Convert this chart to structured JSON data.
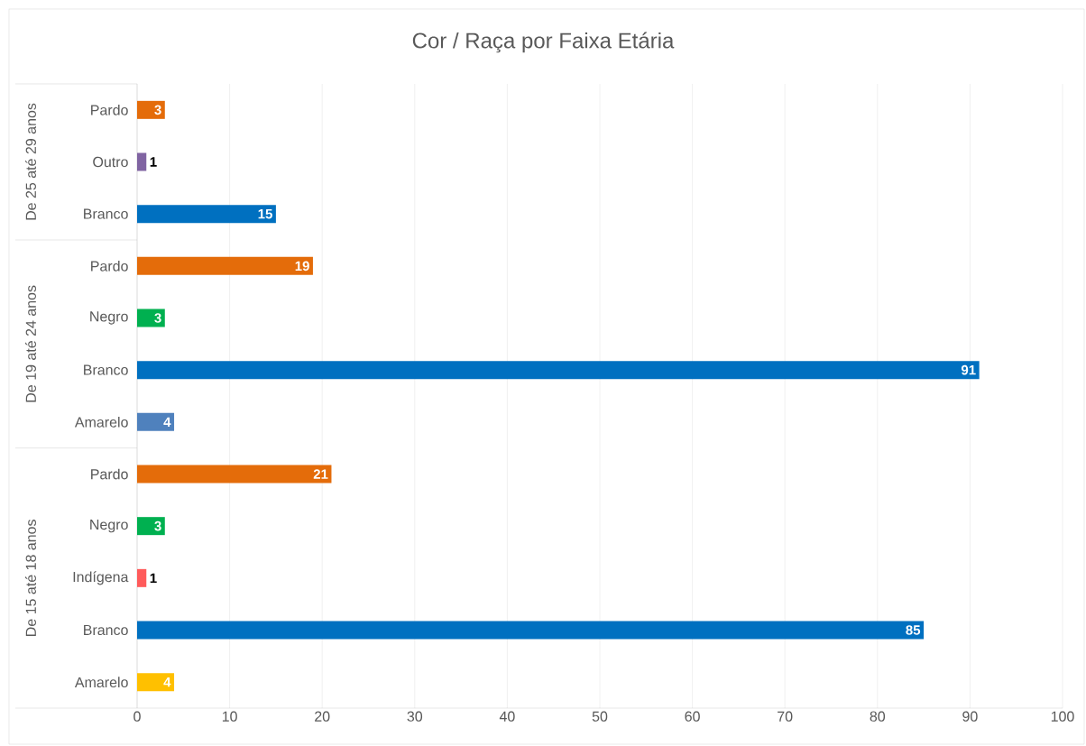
{
  "chart_data": {
    "type": "bar",
    "orientation": "horizontal",
    "title": "Cor / Raça por Faixa Etária",
    "categories": [
      "Pardo",
      "Outro",
      "Branco",
      "Pardo",
      "Negro",
      "Branco",
      "Amarelo",
      "Pardo",
      "Negro",
      "Indígena",
      "Branco",
      "Amarelo"
    ],
    "values": [
      3,
      1,
      15,
      19,
      3,
      91,
      4,
      21,
      3,
      1,
      85,
      4
    ],
    "colors": [
      "#e46c0a",
      "#8064a2",
      "#0070c0",
      "#e46c0a",
      "#00b050",
      "#0070c0",
      "#4f81bd",
      "#e46c0a",
      "#00b050",
      "#ff5b5b",
      "#0070c0",
      "#ffc000"
    ],
    "annotations": [
      "De 25 até 29 anos",
      "De 19 até 24 anos",
      "De 15 até 18 anos"
    ],
    "xlim": [
      0,
      100
    ],
    "xticks": [
      0,
      10,
      20,
      30,
      40,
      50,
      60,
      70,
      80,
      90,
      100
    ],
    "grid": "x",
    "data_labels": true
  }
}
